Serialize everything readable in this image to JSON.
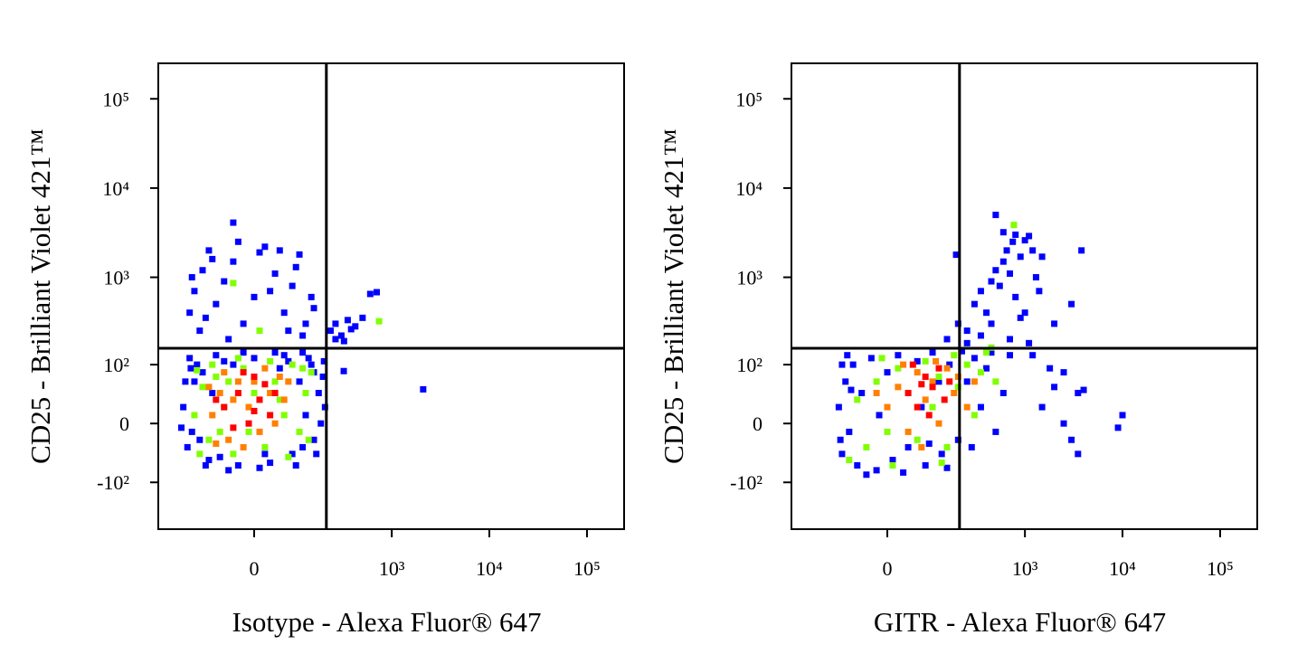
{
  "chart_data": [
    {
      "type": "scatter",
      "xscale": "biexponential",
      "yscale": "biexponential",
      "xlabel": "Isotype - Alexa Fluor® 647",
      "ylabel": "CD25 - Brilliant Violet 421™",
      "xlim": [
        -370,
        240000
      ],
      "ylim": [
        -350,
        250000
      ],
      "xticks": [
        0,
        {
          "value": 1000,
          "label": "10³"
        },
        {
          "value": 10000,
          "label": "10⁴"
        },
        {
          "value": 100000,
          "label": "10⁵"
        }
      ],
      "yticks": [
        {
          "value": -100,
          "label": "-10²"
        },
        0,
        {
          "value": 100,
          "label": "10²"
        },
        {
          "value": 1000,
          "label": "10³"
        },
        {
          "value": 10000,
          "label": "10⁴"
        },
        {
          "value": 100000,
          "label": "10⁵"
        }
      ],
      "gates": {
        "x": 207,
        "y": 157
      },
      "series": [
        {
          "color": "#0000ff",
          "x": [
            -200,
            -180,
            -150,
            -160,
            -120,
            -100,
            -90,
            -140,
            -60,
            -30,
            0,
            30,
            50,
            80,
            100,
            120,
            150,
            170,
            190,
            140,
            110,
            60,
            -20,
            -110,
            -190,
            -170,
            180,
            200,
            90,
            -50,
            10,
            -80,
            40,
            130,
            160,
            -130,
            -210,
            70,
            -40,
            20,
            150,
            -70,
            195,
            -165,
            110,
            -170,
            -150,
            -120,
            -100,
            -80,
            -60,
            -40,
            -20,
            0,
            20,
            40,
            60,
            80,
            100,
            120,
            140,
            -130,
            -90,
            -30,
            50,
            -160,
            30,
            -40,
            110,
            70,
            -50,
            150,
            90,
            -110,
            10,
            230,
            260,
            300,
            350,
            420,
            500,
            600,
            700,
            260,
            380,
            320,
            2100,
            318
          ],
          "values": [
            20,
            -30,
            60,
            -10,
            80,
            -50,
            40,
            100,
            110,
            -60,
            120,
            -55,
            90,
            -40,
            60,
            10,
            -20,
            40,
            70,
            100,
            -30,
            130,
            140,
            -60,
            60,
            120,
            0,
            20,
            -60,
            -70,
            -65,
            130,
            140,
            120,
            -40,
            -20,
            -5,
            110,
            100,
            -40,
            80,
            -45,
            110,
            90,
            140,
            400,
            700,
            1200,
            2000,
            500,
            900,
            1500,
            300,
            600,
            2200,
            1100,
            400,
            800,
            1800,
            300,
            600,
            250,
            1600,
            2500,
            2000,
            1000,
            700,
            4100,
            220,
            250,
            200,
            450,
            1300,
            350,
            1900,
            250,
            300,
            220,
            330,
            280,
            350,
            650,
            680,
            200,
            260,
            190,
            46,
            83
          ]
        },
        {
          "color": "#80ff00",
          "x": [
            -150,
            -120,
            -100,
            -80,
            -60,
            -40,
            -20,
            0,
            20,
            40,
            60,
            80,
            100,
            120,
            140,
            -130,
            -90,
            -50,
            -10,
            30,
            70,
            110,
            -70,
            50,
            -140,
            130,
            -30,
            -40,
            10,
            740
          ],
          "values": [
            10,
            50,
            -20,
            70,
            20,
            -40,
            90,
            40,
            -30,
            60,
            10,
            100,
            -10,
            40,
            80,
            -40,
            100,
            60,
            -10,
            110,
            -45,
            90,
            -10,
            30,
            85,
            -20,
            120,
            860,
            250,
            320
          ]
        },
        {
          "color": "#ff8000",
          "x": [
            -90,
            -70,
            -50,
            -30,
            -10,
            10,
            30,
            50,
            -60,
            -100,
            20,
            40,
            -20,
            60,
            -80,
            0,
            70,
            -40
          ],
          "values": [
            10,
            40,
            -20,
            60,
            20,
            -10,
            40,
            70,
            80,
            50,
            90,
            0,
            -30,
            30,
            -25,
            60,
            60,
            30
          ]
        },
        {
          "color": "#ff0000",
          "x": [
            -60,
            -30,
            -10,
            10,
            0,
            -40,
            20,
            30,
            -20,
            40,
            -80,
            0
          ],
          "values": [
            20,
            40,
            0,
            30,
            70,
            -5,
            55,
            10,
            80,
            40,
            30,
            15
          ]
        }
      ]
    },
    {
      "type": "scatter",
      "xscale": "biexponential",
      "yscale": "biexponential",
      "xlabel": "GITR - Alexa Fluor® 647",
      "ylabel": "CD25 - Brilliant Violet 421™",
      "xlim": [
        -370,
        240000
      ],
      "ylim": [
        -350,
        250000
      ],
      "xticks": [
        0,
        {
          "value": 1000,
          "label": "10³"
        },
        {
          "value": 10000,
          "label": "10⁴"
        },
        {
          "value": 100000,
          "label": "10⁵"
        }
      ],
      "yticks": [
        {
          "value": -100,
          "label": "-10²"
        },
        0,
        {
          "value": 100,
          "label": "10²"
        },
        {
          "value": 1000,
          "label": "10³"
        },
        {
          "value": 10000,
          "label": "10⁴"
        },
        {
          "value": 100000,
          "label": "10⁵"
        }
      ],
      "gates": {
        "x": 207,
        "y": 157
      },
      "series": [
        {
          "color": "#0000ff",
          "x": [
            -110,
            -100,
            -90,
            -80,
            -70,
            -60,
            -50,
            -30,
            -20,
            0,
            10,
            20,
            40,
            60,
            80,
            100,
            130,
            160,
            200,
            250,
            300,
            350,
            400,
            500,
            600,
            700,
            -100,
            -40,
            30,
            150,
            -85,
            220,
            -105,
            280,
            450,
            120,
            70,
            -15,
            90,
            -75,
            2000,
            2500,
            3000,
            3500,
            4000,
            9000,
            10000,
            3500,
            2500,
            1500,
            1800,
            1200,
            150,
            200,
            250,
            300,
            350,
            400,
            450,
            500,
            550,
            600,
            650,
            700,
            750,
            800,
            900,
            1000,
            1100,
            1200,
            1300,
            1400,
            500,
            600,
            350,
            250,
            1000,
            2000,
            3800,
            3000,
            1500,
            190,
            900,
            1100,
            450,
            700,
            800
          ],
          "values": [
            20,
            -40,
            60,
            -10,
            100,
            -60,
            40,
            120,
            -70,
            80,
            -50,
            130,
            -30,
            110,
            -60,
            140,
            -40,
            100,
            -20,
            60,
            120,
            20,
            90,
            -10,
            40,
            130,
            100,
            -80,
            -75,
            -65,
            130,
            145,
            -20,
            -30,
            140,
            60,
            20,
            10,
            -25,
            45,
            50,
            80,
            -20,
            40,
            45,
            -5,
            10,
            -40,
            0,
            20,
            90,
            130,
            200,
            300,
            250,
            500,
            700,
            400,
            900,
            1200,
            800,
            1500,
            2000,
            1100,
            2500,
            3000,
            1700,
            2600,
            2900,
            2000,
            1000,
            700,
            5000,
            3200,
            220,
            180,
            400,
            300,
            2000,
            500,
            1700,
            1790,
            350,
            180,
            300,
            200,
            600
          ]
        },
        {
          "color": "#80ff00",
          "x": [
            -60,
            -40,
            -20,
            0,
            20,
            40,
            60,
            80,
            100,
            120,
            150,
            180,
            200,
            250,
            300,
            350,
            400,
            -80,
            10,
            130,
            500,
            770,
            450,
            -10
          ],
          "values": [
            30,
            -30,
            60,
            -10,
            90,
            40,
            -20,
            110,
            20,
            70,
            -30,
            130,
            50,
            100,
            10,
            80,
            140,
            -50,
            -60,
            -55,
            60,
            3860,
            160,
            120
          ]
        },
        {
          "color": "#ff8000",
          "x": [
            0,
            20,
            40,
            60,
            80,
            100,
            120,
            150,
            180,
            200,
            250,
            30,
            -20,
            70,
            110,
            300
          ],
          "values": [
            20,
            50,
            -10,
            80,
            30,
            60,
            0,
            90,
            40,
            70,
            20,
            100,
            40,
            -30,
            110,
            60
          ]
        },
        {
          "color": "#ff0000",
          "x": [
            40,
            60,
            80,
            100,
            120,
            140,
            90,
            50,
            160,
            70
          ],
          "values": [
            40,
            20,
            70,
            50,
            90,
            30,
            10,
            100,
            60,
            55
          ]
        }
      ]
    }
  ]
}
